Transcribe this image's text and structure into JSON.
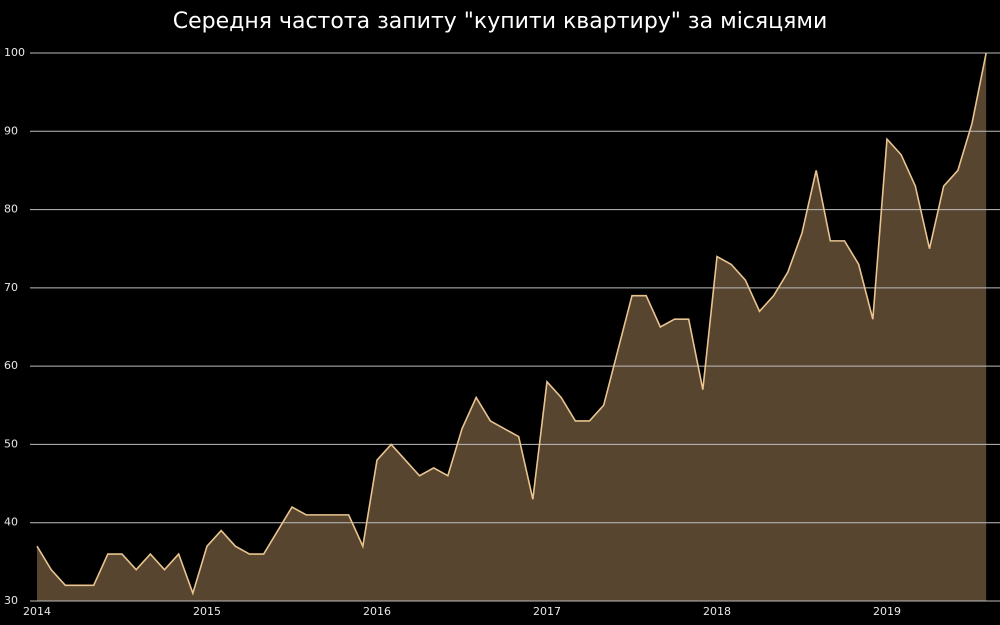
{
  "chart_data": {
    "type": "area",
    "title": "Середня частота запиту \"купити квартиру\" за місяцями",
    "categories": [
      "2014",
      null,
      null,
      null,
      null,
      null,
      null,
      null,
      null,
      null,
      null,
      null,
      "2015",
      null,
      null,
      null,
      null,
      null,
      null,
      null,
      null,
      null,
      null,
      null,
      "2016",
      null,
      null,
      null,
      null,
      null,
      null,
      null,
      null,
      null,
      null,
      null,
      "2017",
      null,
      null,
      null,
      null,
      null,
      null,
      null,
      null,
      null,
      null,
      null,
      "2018",
      null,
      null,
      null,
      null,
      null,
      null,
      null,
      null,
      null,
      null,
      null,
      "2019",
      null,
      null,
      null,
      null,
      null,
      null,
      null
    ],
    "values": [
      37,
      34,
      32,
      32,
      32,
      36,
      36,
      34,
      36,
      34,
      36,
      31,
      37,
      39,
      37,
      36,
      36,
      39,
      42,
      41,
      41,
      41,
      41,
      37,
      48,
      50,
      48,
      46,
      47,
      46,
      52,
      56,
      53,
      52,
      51,
      43,
      58,
      56,
      53,
      53,
      55,
      62,
      69,
      69,
      65,
      66,
      66,
      57,
      74,
      73,
      71,
      67,
      69,
      72,
      77,
      85,
      76,
      76,
      73,
      66,
      89,
      87,
      83,
      75,
      83,
      85,
      91,
      100
    ],
    "color": "#e9c48e",
    "fill": "#574530",
    "ylim": [
      30,
      100
    ],
    "yticks": [
      30,
      40,
      50,
      60,
      70,
      80,
      90,
      100
    ],
    "grid": true
  }
}
